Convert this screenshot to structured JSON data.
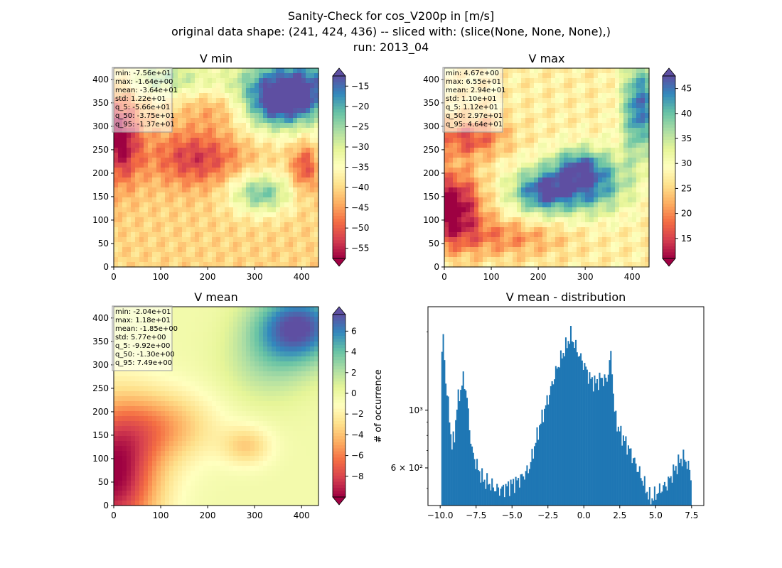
{
  "figure": {
    "title_lines": [
      "Sanity-Check for cos_V200p in [m/s]",
      "original data shape: (241, 424, 436) -- sliced with: (slice(None, None, None),)",
      "run: 2013_04"
    ]
  },
  "chart_data": [
    {
      "type": "heatmap",
      "title": "V min",
      "x_ticks": [
        0,
        100,
        200,
        300,
        400
      ],
      "y_ticks": [
        0,
        50,
        100,
        150,
        200,
        250,
        300,
        350,
        400
      ],
      "xlim": [
        0,
        436
      ],
      "ylim": [
        0,
        424
      ],
      "colormap": "Spectral",
      "colorbar": {
        "range": [
          -57.5,
          -12.5
        ],
        "ticks": [
          -15,
          -20,
          -25,
          -30,
          -35,
          -40,
          -45,
          -50,
          -55
        ],
        "extend": "both"
      },
      "stats": [
        "min: -7.56e+01",
        "max: -1.64e+00",
        "mean: -3.64e+01",
        "std: 1.22e+01",
        "q_5: -5.66e+01",
        "q_50: -3.75e+01",
        "q_95: -1.37e+01"
      ]
    },
    {
      "type": "heatmap",
      "title": "V max",
      "x_ticks": [
        0,
        100,
        200,
        300,
        400
      ],
      "y_ticks": [
        0,
        50,
        100,
        150,
        200,
        250,
        300,
        350,
        400
      ],
      "xlim": [
        0,
        436
      ],
      "ylim": [
        0,
        424
      ],
      "colormap": "Spectral",
      "colorbar": {
        "range": [
          11,
          47.5
        ],
        "ticks": [
          15,
          20,
          25,
          30,
          35,
          40,
          45
        ],
        "extend": "both"
      },
      "stats": [
        "min: 4.67e+00",
        "max: 6.55e+01",
        "mean: 2.94e+01",
        "std: 1.10e+01",
        "q_5: 1.12e+01",
        "q_50: 2.97e+01",
        "q_95: 4.64e+01"
      ]
    },
    {
      "type": "heatmap",
      "title": "V mean",
      "x_ticks": [
        0,
        100,
        200,
        300,
        400
      ],
      "y_ticks": [
        0,
        50,
        100,
        150,
        200,
        250,
        300,
        350,
        400
      ],
      "xlim": [
        0,
        436
      ],
      "ylim": [
        0,
        424
      ],
      "colormap": "Spectral",
      "colorbar": {
        "range": [
          -10,
          7.6
        ],
        "ticks": [
          6,
          4,
          2,
          0,
          -2,
          -4,
          -6,
          -8
        ],
        "tick_labels": [
          "6",
          "4",
          "2",
          "0",
          "−2",
          "−4",
          "−6",
          "−8"
        ],
        "extend": "both"
      },
      "stats": [
        "min: -2.04e+01",
        "max: 1.18e+01",
        "mean: -1.85e+00",
        "std: 5.77e+00",
        "q_5: -9.92e+00",
        "q_50: -1.30e+00",
        "q_95: 7.49e+00"
      ]
    },
    {
      "type": "bar",
      "title": "V mean - distribution",
      "ylabel": "# of occurrence",
      "yscale": "log",
      "xlim": [
        -10.85,
        8.35
      ],
      "ylim": [
        430,
        2500
      ],
      "x_ticks": [
        -10,
        -7.5,
        -5,
        -2.5,
        0,
        2.5,
        5,
        7.5
      ],
      "x_tick_labels": [
        "−10.0",
        "−7.5",
        "−5.0",
        "−2.5",
        "0.0",
        "2.5",
        "5.0",
        "7.5"
      ],
      "y_ticks": [
        600,
        1000
      ],
      "y_tick_labels": [
        "6 × 10²",
        "10³"
      ],
      "bin_range": [
        -9.92,
        7.49
      ],
      "color": "#1f77b4",
      "profile": [
        [
          -9.92,
          1550
        ],
        [
          -9.8,
          1900
        ],
        [
          -9.6,
          1250
        ],
        [
          -9.4,
          1000
        ],
        [
          -9.2,
          720
        ],
        [
          -9.0,
          800
        ],
        [
          -8.8,
          1080
        ],
        [
          -8.6,
          1180
        ],
        [
          -8.4,
          1320
        ],
        [
          -8.2,
          1200
        ],
        [
          -8.0,
          900
        ],
        [
          -7.8,
          700
        ],
        [
          -7.6,
          650
        ],
        [
          -7.4,
          600
        ],
        [
          -7.2,
          570
        ],
        [
          -7.0,
          540
        ],
        [
          -6.6,
          525
        ],
        [
          -6.2,
          500
        ],
        [
          -5.8,
          495
        ],
        [
          -5.4,
          505
        ],
        [
          -5.0,
          520
        ],
        [
          -4.6,
          535
        ],
        [
          -4.2,
          560
        ],
        [
          -3.8,
          600
        ],
        [
          -3.5,
          700
        ],
        [
          -3.2,
          820
        ],
        [
          -2.8,
          980
        ],
        [
          -2.4,
          1150
        ],
        [
          -2.0,
          1380
        ],
        [
          -1.6,
          1580
        ],
        [
          -1.2,
          1780
        ],
        [
          -0.9,
          1950
        ],
        [
          -0.6,
          1760
        ],
        [
          -0.3,
          1620
        ],
        [
          0.0,
          1500
        ],
        [
          0.4,
          1330
        ],
        [
          0.8,
          1270
        ],
        [
          1.2,
          1330
        ],
        [
          1.6,
          1300
        ],
        [
          1.9,
          1650
        ],
        [
          2.1,
          1000
        ],
        [
          2.4,
          850
        ],
        [
          2.8,
          770
        ],
        [
          3.2,
          700
        ],
        [
          3.6,
          620
        ],
        [
          3.9,
          570
        ],
        [
          4.2,
          520
        ],
        [
          4.5,
          470
        ],
        [
          4.7,
          455
        ],
        [
          5.0,
          475
        ],
        [
          5.4,
          500
        ],
        [
          5.8,
          520
        ],
        [
          6.2,
          575
        ],
        [
          6.6,
          630
        ],
        [
          6.9,
          660
        ],
        [
          7.1,
          640
        ],
        [
          7.3,
          600
        ],
        [
          7.49,
          545
        ]
      ]
    }
  ]
}
